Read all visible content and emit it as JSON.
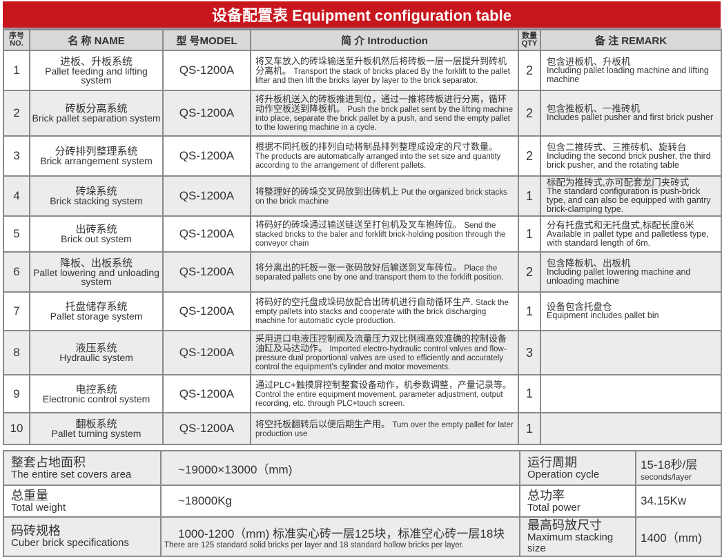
{
  "title": "设备配置表 Equipment configuration table",
  "headers": {
    "no_cn": "序号",
    "no_en": "NO.",
    "name": "名 称 NAME",
    "model": "型 号MODEL",
    "intro": "简 介 Introduction",
    "qty_cn": "数量",
    "qty_en": "QTY",
    "remark": "备 注 REMARK"
  },
  "rows": [
    {
      "no": "1",
      "name_cn": "进板、升板系统",
      "name_en": "Pallet feeding and lifting system",
      "model": "QS-1200A",
      "intro_cn": "将叉车放入的砖垛输送至升板机然后将砖板一层一层提升到砖机分离机。",
      "intro_en": "Transport the stack of bricks placed By the forklift to the pallet lifter and then lift the bricks layer by layer to the brick separator.",
      "qty": "2",
      "remark_cn": "包含进板机、升板机",
      "remark_en": "Including pallet loading machine and lifting machine"
    },
    {
      "no": "2",
      "name_cn": "砖板分离系统",
      "name_en": "Brick pallet separation system",
      "model": "QS-1200A",
      "intro_cn": "将升板机送入的砖板推进到位，通过一推将砖板进行分离，循环动作空板送到降板机。",
      "intro_en": "Push the brick pallet sent by the lifting machine into place, separate the brick pallet by a push, and send the empty pallet to the lowering machine in a cycle.",
      "qty": "2",
      "remark_cn": "包含推板机、一推砖机",
      "remark_en": "Includes pallet pusher and first brick pusher"
    },
    {
      "no": "3",
      "name_cn": "分砖排列整理系统",
      "name_en": "Brick arrangement system",
      "model": "QS-1200A",
      "intro_cn": "根据不同托板的排列自动将制品排列整理成设定的尺寸数量。",
      "intro_en": "The products are automatically arranged into the set size and quantity according to the arrangement of different pallets.",
      "qty": "2",
      "remark_cn": "包含二推砖式、三推砖机、旋转台",
      "remark_en": "Including the second brick pusher, the third brick pusher, and the rotating table"
    },
    {
      "no": "4",
      "name_cn": "砖垛系统",
      "name_en": "Brick stacking system",
      "model": "QS-1200A",
      "intro_cn": "将整理好的砖垛交叉码放到出砖机上",
      "intro_en": "Put the organized brick stacks on the brick machine",
      "qty": "1",
      "remark_cn": "标配为推砖式,亦可配套龙门夹砖式",
      "remark_en": "The standard configuration is push-brick type, and can also be equipped with gantry brick-clamping type."
    },
    {
      "no": "5",
      "name_cn": "出砖系统",
      "name_en": "Brick out system",
      "model": "QS-1200A",
      "intro_cn": "将码好的砖垛通过输送链送至打包机及叉车抱砖位。",
      "intro_en": "Send the stacked bricks to the baler and forklift brick-holding position through the conveyor chain",
      "qty": "1",
      "remark_cn": "分有托盘式和无托盘式,标配长度6米",
      "remark_en": "Available in pallet type and palletless type, with standard length of 6m."
    },
    {
      "no": "6",
      "name_cn": "降板、出板系统",
      "name_en": "Pallet lowering and unloading system",
      "model": "QS-1200A",
      "intro_cn": "将分离出的托板一张一张码放好后输送到叉车砖位。",
      "intro_en": "Place the separated pallets one by one and transport them to the forklift position.",
      "qty": "2",
      "remark_cn": "包含降板机、出板机",
      "remark_en": "Including pallet lowering machine and unloading machine"
    },
    {
      "no": "7",
      "name_cn": "托盘储存系统",
      "name_en": "Pallet storage system",
      "model": "QS-1200A",
      "intro_cn": "将码好的空托盘成垛码放配合出砖机进行自动循环生产.",
      "intro_en": "Stack the empty pallets into stacks and cooperate with the brick discharging machine for automatic cycle production.",
      "qty": "1",
      "remark_cn": "设备包含托盘仓",
      "remark_en": "Equipment includes pallet bin"
    },
    {
      "no": "8",
      "name_cn": "液压系统",
      "name_en": "Hydraulic system",
      "model": "QS-1200A",
      "intro_cn": "采用进口电液压控制阀及流量压力双比例阀高效准确的控制设备油缸及马达动作。",
      "intro_en": "Imported electro-hydraulic control valves and flow-pressure dual proportional valves are used to efficiently and accurately control the equipment's cylinder and motor movements.",
      "qty": "3",
      "remark_cn": "",
      "remark_en": ""
    },
    {
      "no": "9",
      "name_cn": "电控系统",
      "name_en": "Electronic control system",
      "model": "QS-1200A",
      "intro_cn": "通过PLC+触摸屏控制整套设备动作，机参数调整，产量记录等。",
      "intro_en": "Control the entire equipment movement, parameter adjustment, output recording, etc. through PLC+touch screen.",
      "qty": "1",
      "remark_cn": "",
      "remark_en": ""
    },
    {
      "no": "10",
      "name_cn": "翻板系统",
      "name_en": "Pallet turning system",
      "model": "QS-1200A",
      "intro_cn": "将空托板翻转后以便后期生产用。",
      "intro_en": "Turn over the empty pallet for later production use",
      "qty": "1",
      "remark_cn": "",
      "remark_en": ""
    }
  ],
  "specs": [
    {
      "label_cn": "整套占地面积",
      "label_en": "The entire set covers area",
      "value": "~19000×13000（mm)",
      "value_sub": "",
      "label2_cn": "运行周期",
      "label2_en": "Operation cycle",
      "value2": "15-18秒/层",
      "value2_sub": "seconds/layer"
    },
    {
      "label_cn": "总重量",
      "label_en": "Total weight",
      "value": "~18000Kg",
      "value_sub": "",
      "label2_cn": "总功率",
      "label2_en": "Total power",
      "value2": "34.15Kw",
      "value2_sub": ""
    },
    {
      "label_cn": "码砖规格",
      "label_en": "Cuber brick specifications",
      "value": "1000-1200（mm) 标准实心砖一层125块，标准空心砖一层18块",
      "value_sub": "There are 125 standard solid bricks per layer and 18 standard hollow bricks per layer.",
      "label2_cn": "最高码放尺寸",
      "label2_en": "Maximum stacking size",
      "value2": "1400（mm)",
      "value2_sub": ""
    }
  ]
}
